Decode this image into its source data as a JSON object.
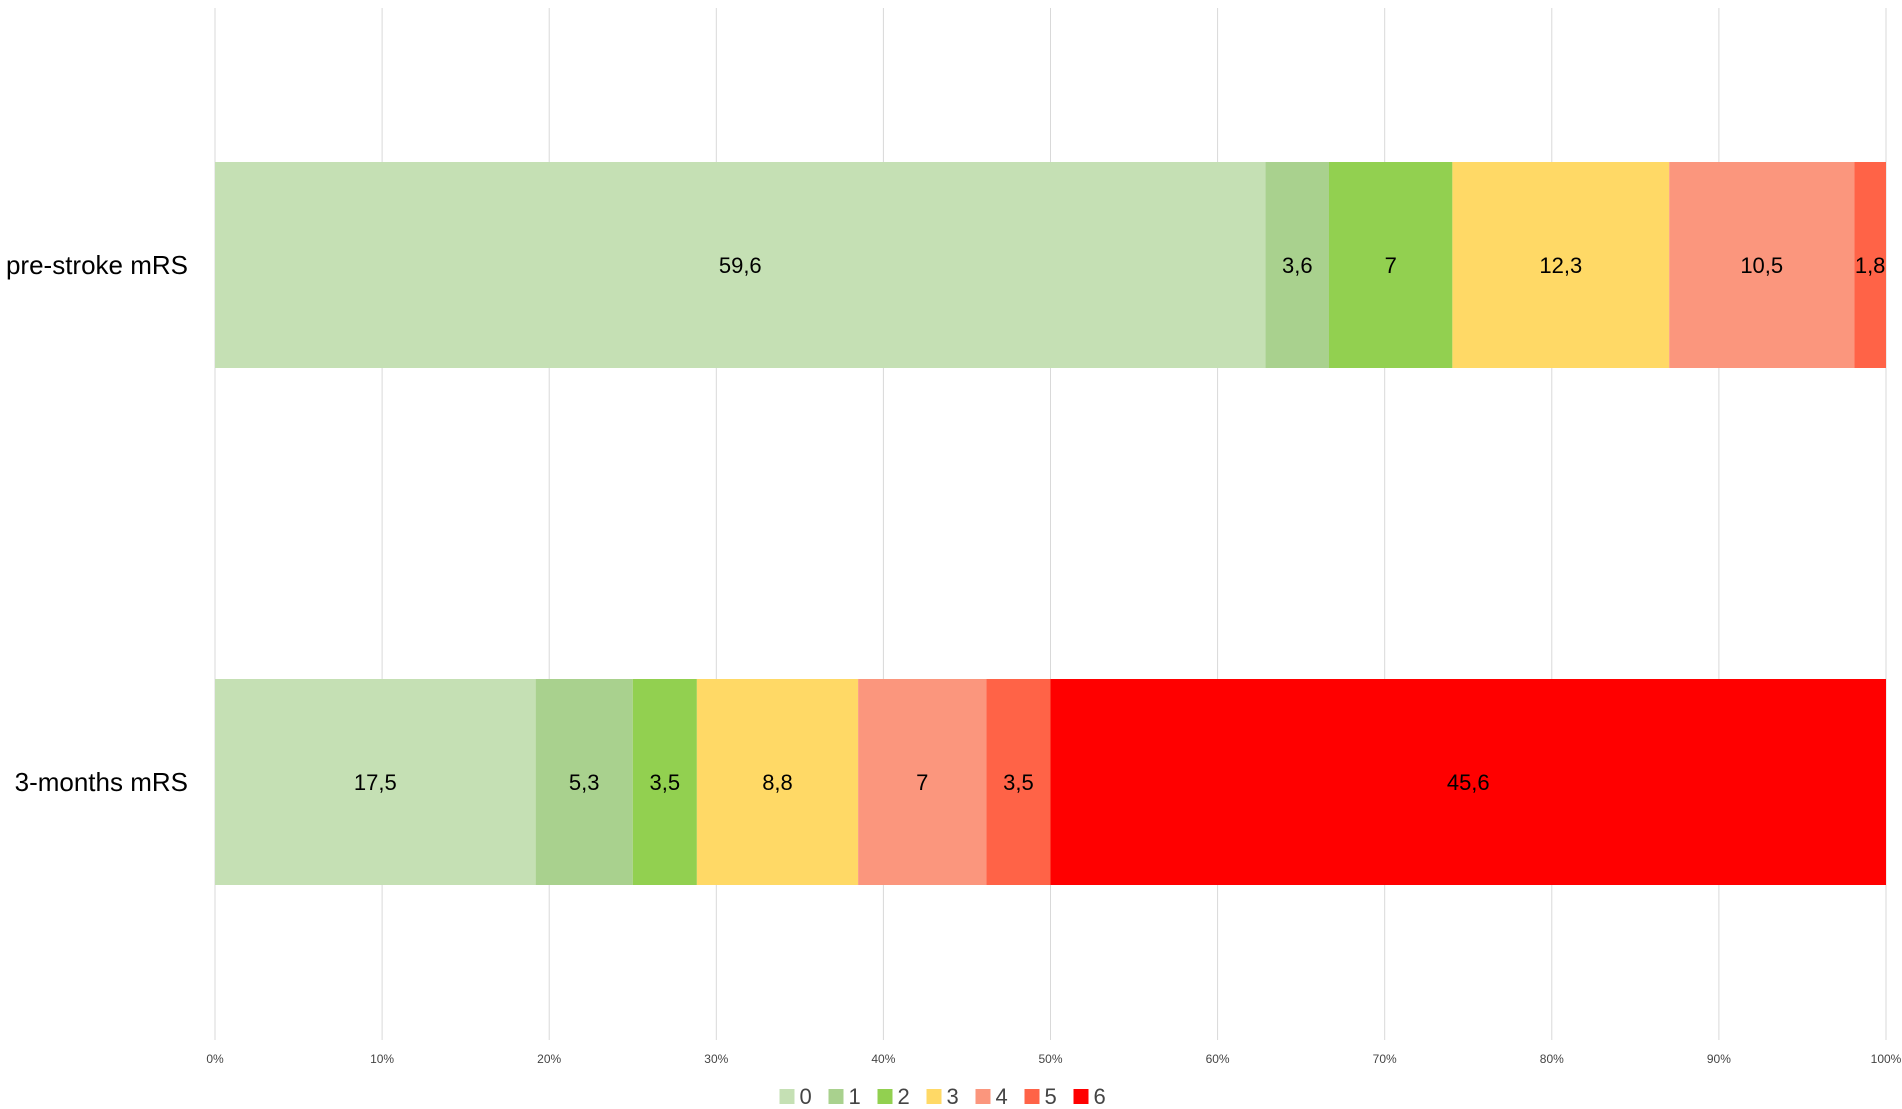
{
  "chart_data": {
    "type": "bar",
    "orientation": "horizontal",
    "stacked": "percent",
    "categories": [
      "pre-stroke mRS",
      "3-months mRS"
    ],
    "series": [
      {
        "name": "0",
        "color": "#c5e0b4",
        "values": [
          59.6,
          17.5
        ]
      },
      {
        "name": "1",
        "color": "#a9d18e",
        "values": [
          3.6,
          5.3
        ]
      },
      {
        "name": "2",
        "color": "#92d050",
        "values": [
          7,
          3.5
        ]
      },
      {
        "name": "3",
        "color": "#ffd966",
        "values": [
          12.3,
          8.8
        ]
      },
      {
        "name": "4",
        "color": "#fb967d",
        "values": [
          10.5,
          7
        ]
      },
      {
        "name": "5",
        "color": "#ff6347",
        "values": [
          1.8,
          3.5
        ]
      },
      {
        "name": "6",
        "color": "#ff0000",
        "values": [
          0,
          45.6
        ]
      }
    ],
    "data_labels": [
      [
        "59,6",
        "3,6",
        "7",
        "12,3",
        "10,5",
        "1,8",
        ""
      ],
      [
        "17,5",
        "5,3",
        "3,5",
        "8,8",
        "7",
        "3,5",
        "45,6"
      ]
    ],
    "xticks": [
      "0%",
      "10%",
      "20%",
      "30%",
      "40%",
      "50%",
      "60%",
      "70%",
      "80%",
      "90%",
      "100%"
    ],
    "xlim": [
      0,
      100
    ],
    "grid": "vertical",
    "legend": "bottom-center"
  }
}
